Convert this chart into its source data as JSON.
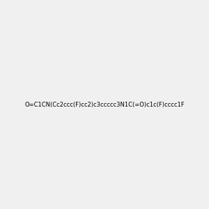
{
  "smiles": "O=C1CN(Cc2ccc(F)cc2)c3ccccc3N1C(=O)c1c(F)cccc1F",
  "title": "",
  "bg_color": "#f0f0f0",
  "bond_color": "#000000",
  "atom_colors": {
    "N": "#0000ff",
    "O": "#ff0000",
    "F": "#ff00ff"
  },
  "figsize": [
    3.0,
    3.0
  ],
  "dpi": 100
}
